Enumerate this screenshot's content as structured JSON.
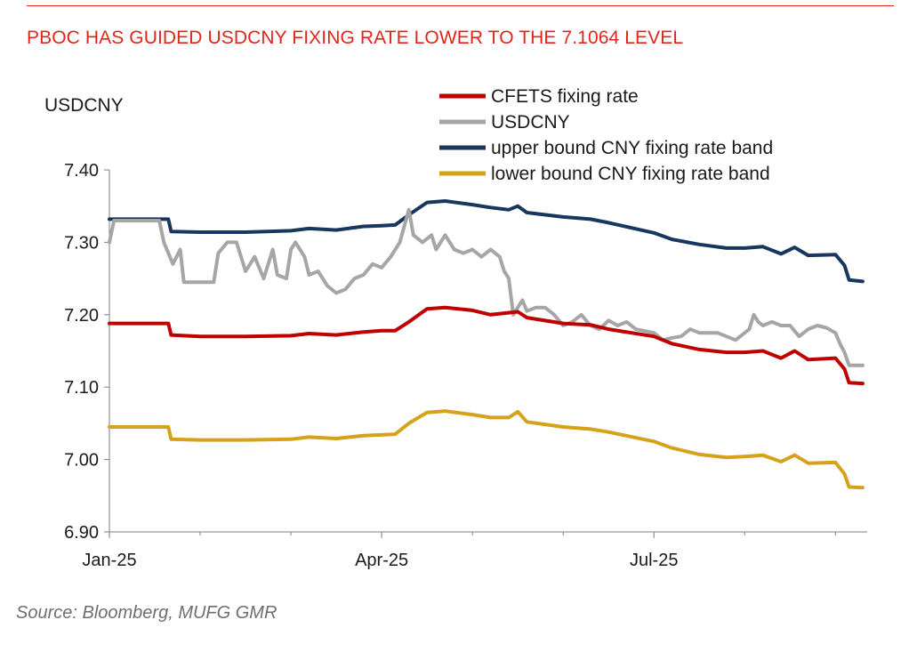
{
  "title": "PBOC HAS GUIDED USDCNY FIXING RATE LOWER TO THE 7.1064 LEVEL",
  "source": "Source: Bloomberg, MUFG GMR",
  "colors": {
    "title": "#e0261b",
    "cfets": "#c00000",
    "usdcny": "#a6a6a6",
    "upper": "#17375e",
    "lower": "#d6a21c"
  },
  "chart_data": {
    "type": "line",
    "ylabel": "USDCNY",
    "xlabel": "",
    "ylim": [
      6.9,
      7.4
    ],
    "y_ticks": [
      "7.40",
      "7.30",
      "7.20",
      "7.10",
      "7.00",
      "6.90"
    ],
    "x_ticks": [
      "Jan-25",
      "Apr-25",
      "Jul-25"
    ],
    "x_range_months": [
      0,
      8.15
    ],
    "grid": false,
    "legend_position": "top",
    "series": [
      {
        "name": "CFETS fixing rate",
        "color": "#c00000",
        "points": [
          [
            0.0,
            7.188
          ],
          [
            0.5,
            7.188
          ],
          [
            0.65,
            7.188
          ],
          [
            0.68,
            7.172
          ],
          [
            1.0,
            7.17
          ],
          [
            1.5,
            7.17
          ],
          [
            2.0,
            7.171
          ],
          [
            2.2,
            7.174
          ],
          [
            2.5,
            7.172
          ],
          [
            2.8,
            7.176
          ],
          [
            3.0,
            7.178
          ],
          [
            3.15,
            7.178
          ],
          [
            3.3,
            7.19
          ],
          [
            3.5,
            7.208
          ],
          [
            3.7,
            7.21
          ],
          [
            4.0,
            7.206
          ],
          [
            4.2,
            7.2
          ],
          [
            4.5,
            7.204
          ],
          [
            4.6,
            7.196
          ],
          [
            5.0,
            7.188
          ],
          [
            5.3,
            7.186
          ],
          [
            5.5,
            7.18
          ],
          [
            6.0,
            7.17
          ],
          [
            6.2,
            7.16
          ],
          [
            6.5,
            7.152
          ],
          [
            6.8,
            7.148
          ],
          [
            7.0,
            7.148
          ],
          [
            7.2,
            7.15
          ],
          [
            7.4,
            7.14
          ],
          [
            7.55,
            7.15
          ],
          [
            7.7,
            7.138
          ],
          [
            8.0,
            7.14
          ],
          [
            8.1,
            7.125
          ],
          [
            8.15,
            7.106
          ],
          [
            8.3,
            7.105
          ]
        ]
      },
      {
        "name": "USDCNY",
        "color": "#a6a6a6",
        "points": [
          [
            0.0,
            7.3
          ],
          [
            0.05,
            7.33
          ],
          [
            0.2,
            7.33
          ],
          [
            0.4,
            7.33
          ],
          [
            0.55,
            7.33
          ],
          [
            0.6,
            7.3
          ],
          [
            0.7,
            7.27
          ],
          [
            0.78,
            7.29
          ],
          [
            0.82,
            7.245
          ],
          [
            1.0,
            7.245
          ],
          [
            1.15,
            7.245
          ],
          [
            1.2,
            7.285
          ],
          [
            1.3,
            7.3
          ],
          [
            1.4,
            7.3
          ],
          [
            1.45,
            7.28
          ],
          [
            1.5,
            7.26
          ],
          [
            1.6,
            7.28
          ],
          [
            1.7,
            7.25
          ],
          [
            1.75,
            7.27
          ],
          [
            1.8,
            7.29
          ],
          [
            1.85,
            7.255
          ],
          [
            1.95,
            7.25
          ],
          [
            2.0,
            7.29
          ],
          [
            2.05,
            7.3
          ],
          [
            2.15,
            7.28
          ],
          [
            2.2,
            7.255
          ],
          [
            2.3,
            7.26
          ],
          [
            2.4,
            7.24
          ],
          [
            2.5,
            7.23
          ],
          [
            2.6,
            7.235
          ],
          [
            2.7,
            7.25
          ],
          [
            2.8,
            7.255
          ],
          [
            2.9,
            7.27
          ],
          [
            3.0,
            7.265
          ],
          [
            3.1,
            7.28
          ],
          [
            3.2,
            7.3
          ],
          [
            3.3,
            7.345
          ],
          [
            3.35,
            7.31
          ],
          [
            3.45,
            7.3
          ],
          [
            3.55,
            7.31
          ],
          [
            3.6,
            7.29
          ],
          [
            3.7,
            7.31
          ],
          [
            3.8,
            7.29
          ],
          [
            3.9,
            7.285
          ],
          [
            4.0,
            7.29
          ],
          [
            4.1,
            7.28
          ],
          [
            4.2,
            7.29
          ],
          [
            4.3,
            7.28
          ],
          [
            4.35,
            7.26
          ],
          [
            4.4,
            7.25
          ],
          [
            4.45,
            7.2
          ],
          [
            4.55,
            7.22
          ],
          [
            4.6,
            7.205
          ],
          [
            4.7,
            7.21
          ],
          [
            4.8,
            7.21
          ],
          [
            4.9,
            7.2
          ],
          [
            5.0,
            7.185
          ],
          [
            5.1,
            7.19
          ],
          [
            5.2,
            7.2
          ],
          [
            5.3,
            7.185
          ],
          [
            5.4,
            7.18
          ],
          [
            5.5,
            7.192
          ],
          [
            5.6,
            7.185
          ],
          [
            5.7,
            7.19
          ],
          [
            5.8,
            7.18
          ],
          [
            6.0,
            7.175
          ],
          [
            6.1,
            7.165
          ],
          [
            6.2,
            7.168
          ],
          [
            6.3,
            7.17
          ],
          [
            6.4,
            7.18
          ],
          [
            6.5,
            7.175
          ],
          [
            6.6,
            7.175
          ],
          [
            6.7,
            7.175
          ],
          [
            6.8,
            7.17
          ],
          [
            6.9,
            7.165
          ],
          [
            7.0,
            7.175
          ],
          [
            7.05,
            7.18
          ],
          [
            7.1,
            7.2
          ],
          [
            7.15,
            7.19
          ],
          [
            7.2,
            7.185
          ],
          [
            7.3,
            7.19
          ],
          [
            7.4,
            7.185
          ],
          [
            7.5,
            7.185
          ],
          [
            7.6,
            7.17
          ],
          [
            7.7,
            7.18
          ],
          [
            7.8,
            7.185
          ],
          [
            7.9,
            7.182
          ],
          [
            8.0,
            7.175
          ],
          [
            8.05,
            7.16
          ],
          [
            8.1,
            7.148
          ],
          [
            8.15,
            7.13
          ],
          [
            8.3,
            7.13
          ]
        ]
      },
      {
        "name": "upper bound CNY fixing rate band",
        "color": "#17375e",
        "points": [
          [
            0.0,
            7.332
          ],
          [
            0.5,
            7.332
          ],
          [
            0.65,
            7.332
          ],
          [
            0.68,
            7.315
          ],
          [
            1.0,
            7.314
          ],
          [
            1.5,
            7.314
          ],
          [
            2.0,
            7.316
          ],
          [
            2.2,
            7.319
          ],
          [
            2.5,
            7.317
          ],
          [
            2.8,
            7.322
          ],
          [
            3.0,
            7.323
          ],
          [
            3.15,
            7.324
          ],
          [
            3.3,
            7.338
          ],
          [
            3.5,
            7.355
          ],
          [
            3.7,
            7.357
          ],
          [
            4.0,
            7.352
          ],
          [
            4.2,
            7.348
          ],
          [
            4.4,
            7.345
          ],
          [
            4.5,
            7.35
          ],
          [
            4.6,
            7.341
          ],
          [
            5.0,
            7.335
          ],
          [
            5.3,
            7.332
          ],
          [
            5.5,
            7.327
          ],
          [
            6.0,
            7.313
          ],
          [
            6.2,
            7.304
          ],
          [
            6.5,
            7.297
          ],
          [
            6.8,
            7.292
          ],
          [
            7.0,
            7.292
          ],
          [
            7.2,
            7.294
          ],
          [
            7.4,
            7.284
          ],
          [
            7.55,
            7.293
          ],
          [
            7.7,
            7.282
          ],
          [
            8.0,
            7.283
          ],
          [
            8.1,
            7.268
          ],
          [
            8.15,
            7.248
          ],
          [
            8.3,
            7.246
          ]
        ]
      },
      {
        "name": "lower bound CNY fixing rate band",
        "color": "#d6a21c",
        "points": [
          [
            0.0,
            7.045
          ],
          [
            0.5,
            7.045
          ],
          [
            0.65,
            7.045
          ],
          [
            0.68,
            7.028
          ],
          [
            1.0,
            7.027
          ],
          [
            1.5,
            7.027
          ],
          [
            2.0,
            7.028
          ],
          [
            2.2,
            7.031
          ],
          [
            2.5,
            7.029
          ],
          [
            2.8,
            7.033
          ],
          [
            3.0,
            7.034
          ],
          [
            3.15,
            7.035
          ],
          [
            3.3,
            7.05
          ],
          [
            3.5,
            7.065
          ],
          [
            3.7,
            7.067
          ],
          [
            4.0,
            7.062
          ],
          [
            4.2,
            7.058
          ],
          [
            4.4,
            7.058
          ],
          [
            4.5,
            7.066
          ],
          [
            4.6,
            7.052
          ],
          [
            5.0,
            7.045
          ],
          [
            5.3,
            7.042
          ],
          [
            5.5,
            7.038
          ],
          [
            6.0,
            7.025
          ],
          [
            6.2,
            7.016
          ],
          [
            6.5,
            7.007
          ],
          [
            6.8,
            7.003
          ],
          [
            7.0,
            7.004
          ],
          [
            7.2,
            7.006
          ],
          [
            7.4,
            6.997
          ],
          [
            7.55,
            7.006
          ],
          [
            7.7,
            6.995
          ],
          [
            8.0,
            6.996
          ],
          [
            8.1,
            6.98
          ],
          [
            8.15,
            6.962
          ],
          [
            8.3,
            6.961
          ]
        ]
      }
    ]
  }
}
